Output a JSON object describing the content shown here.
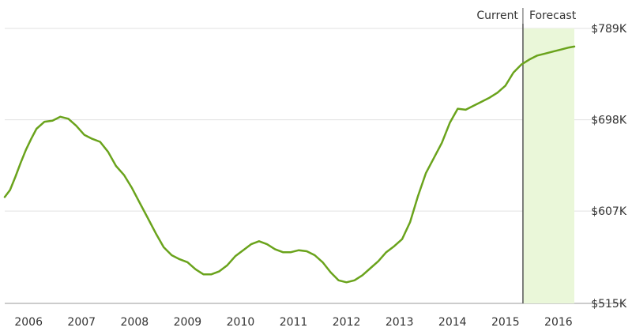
{
  "colors": {
    "line": "#6aa31c",
    "forecast_fill": "#eaf7d9",
    "gridline": "#e0e0e0",
    "axis_text": "#333333",
    "divider": "#555555"
  },
  "markers": {
    "current_label": "Current",
    "forecast_label": "Forecast"
  },
  "chart_data": {
    "type": "line",
    "title": "",
    "xlabel": "",
    "ylabel": "",
    "x_ticks": [
      "2006",
      "2007",
      "2008",
      "2009",
      "2010",
      "2011",
      "2012",
      "2013",
      "2014",
      "2015",
      "2016"
    ],
    "y_ticks": [
      "$515K",
      "$607K",
      "$698K",
      "$789K"
    ],
    "y_tick_values": [
      515,
      607,
      698,
      789
    ],
    "ylim": [
      515,
      789
    ],
    "xlim": [
      2005.55,
      2016.3
    ],
    "y_unit": "thousand USD",
    "y_axis_side": "right",
    "grid": true,
    "forecast_start": 2015.33,
    "series": [
      {
        "values": [
          [
            2005.55,
            621
          ],
          [
            2005.65,
            628
          ],
          [
            2005.75,
            641
          ],
          [
            2005.85,
            655
          ],
          [
            2005.95,
            668
          ],
          [
            2006.05,
            679
          ],
          [
            2006.15,
            689
          ],
          [
            2006.3,
            696
          ],
          [
            2006.45,
            697
          ],
          [
            2006.6,
            701
          ],
          [
            2006.75,
            699
          ],
          [
            2006.9,
            692
          ],
          [
            2007.05,
            683
          ],
          [
            2007.2,
            679
          ],
          [
            2007.35,
            676
          ],
          [
            2007.5,
            666
          ],
          [
            2007.65,
            652
          ],
          [
            2007.8,
            643
          ],
          [
            2007.95,
            630
          ],
          [
            2008.1,
            615
          ],
          [
            2008.25,
            600
          ],
          [
            2008.4,
            585
          ],
          [
            2008.55,
            571
          ],
          [
            2008.7,
            563
          ],
          [
            2008.85,
            559
          ],
          [
            2009.0,
            556
          ],
          [
            2009.15,
            549
          ],
          [
            2009.3,
            544
          ],
          [
            2009.45,
            544
          ],
          [
            2009.6,
            547
          ],
          [
            2009.75,
            553
          ],
          [
            2009.9,
            562
          ],
          [
            2010.05,
            568
          ],
          [
            2010.2,
            574
          ],
          [
            2010.35,
            577
          ],
          [
            2010.5,
            574
          ],
          [
            2010.65,
            569
          ],
          [
            2010.8,
            566
          ],
          [
            2010.95,
            566
          ],
          [
            2011.1,
            568
          ],
          [
            2011.25,
            567
          ],
          [
            2011.4,
            563
          ],
          [
            2011.55,
            556
          ],
          [
            2011.7,
            546
          ],
          [
            2011.85,
            538
          ],
          [
            2012.0,
            536
          ],
          [
            2012.15,
            538
          ],
          [
            2012.3,
            543
          ],
          [
            2012.45,
            550
          ],
          [
            2012.6,
            557
          ],
          [
            2012.75,
            566
          ],
          [
            2012.9,
            572
          ],
          [
            2013.05,
            579
          ],
          [
            2013.2,
            596
          ],
          [
            2013.35,
            622
          ],
          [
            2013.5,
            645
          ],
          [
            2013.65,
            660
          ],
          [
            2013.8,
            675
          ],
          [
            2013.95,
            695
          ],
          [
            2014.1,
            709
          ],
          [
            2014.25,
            708
          ],
          [
            2014.4,
            712
          ],
          [
            2014.55,
            716
          ],
          [
            2014.7,
            720
          ],
          [
            2014.85,
            725
          ],
          [
            2015.0,
            732
          ],
          [
            2015.15,
            745
          ],
          [
            2015.3,
            753
          ],
          [
            2015.45,
            758
          ],
          [
            2015.6,
            762
          ],
          [
            2015.75,
            764
          ],
          [
            2015.9,
            766
          ],
          [
            2016.05,
            768
          ],
          [
            2016.2,
            770
          ],
          [
            2016.3,
            771
          ]
        ]
      }
    ]
  }
}
